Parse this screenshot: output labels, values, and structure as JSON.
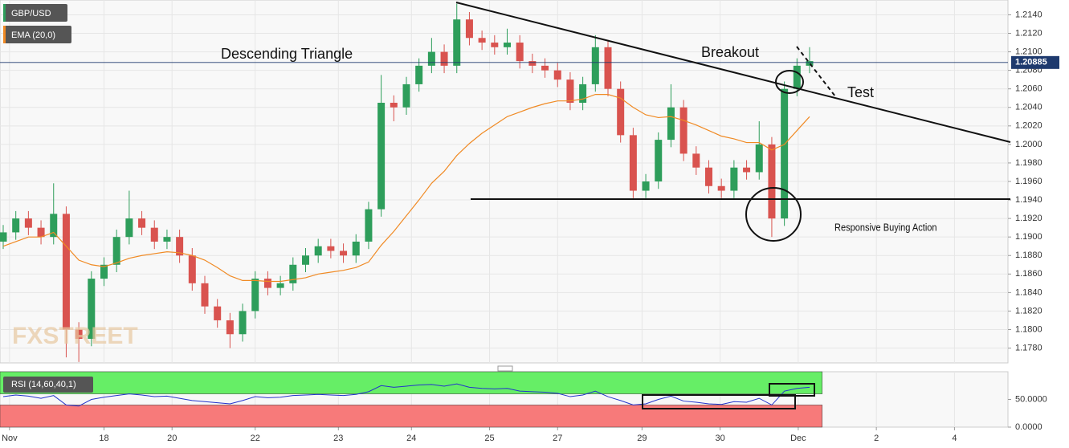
{
  "chart_data": [
    {
      "type": "candlestick",
      "symbol": "GBP/USD",
      "annotations": [
        "Descending Triangle",
        "Breakout",
        "Test",
        "Responsive  Buying Action"
      ],
      "watermark": "FXSTREET",
      "up_color": "#2e9e5b",
      "down_color": "#d9534f",
      "open": [
        1.1895,
        1.1905,
        1.192,
        1.191,
        1.19,
        1.1925,
        1.18,
        1.179,
        1.1855,
        1.187,
        1.19,
        1.192,
        1.191,
        1.1895,
        1.19,
        1.188,
        1.185,
        1.1825,
        1.181,
        1.1795,
        1.182,
        1.1855,
        1.1845,
        1.185,
        1.187,
        1.188,
        1.189,
        1.1885,
        1.188,
        1.1895,
        1.193,
        1.2045,
        1.204,
        1.2065,
        1.2085,
        1.21,
        1.2085,
        1.2135,
        1.2115,
        1.211,
        1.2105,
        1.211,
        1.209,
        1.2085,
        1.208,
        1.207,
        1.2045,
        1.2065,
        1.2105,
        1.206,
        1.201,
        1.195,
        1.196,
        1.2005,
        1.204,
        1.199,
        1.1975,
        1.1955,
        1.195,
        1.1975,
        1.197,
        1.2,
        1.192,
        1.206,
        1.2085
      ],
      "high": [
        1.1913,
        1.1928,
        1.1928,
        1.1918,
        1.1958,
        1.1933,
        1.1808,
        1.1863,
        1.1878,
        1.1908,
        1.195,
        1.1928,
        1.1918,
        1.1908,
        1.1908,
        1.1888,
        1.1858,
        1.1833,
        1.1818,
        1.1828,
        1.1863,
        1.1863,
        1.1858,
        1.1878,
        1.1888,
        1.1898,
        1.1898,
        1.1893,
        1.1903,
        1.1938,
        1.2075,
        1.2053,
        1.2073,
        1.2093,
        1.2115,
        1.2108,
        1.2152,
        1.2143,
        1.2123,
        1.2118,
        1.2125,
        1.2118,
        1.2098,
        1.2093,
        1.2088,
        1.2078,
        1.2073,
        1.2118,
        1.2113,
        1.2068,
        1.2018,
        1.1968,
        1.2013,
        1.2065,
        1.2048,
        1.1998,
        1.1983,
        1.1963,
        1.1983,
        1.1983,
        1.2025,
        1.2008,
        1.2068,
        1.2093,
        1.2105
      ],
      "low": [
        1.1887,
        1.1897,
        1.1902,
        1.1892,
        1.1892,
        1.177,
        1.1765,
        1.1782,
        1.1847,
        1.1862,
        1.1892,
        1.1902,
        1.1887,
        1.1887,
        1.1872,
        1.1842,
        1.1817,
        1.1802,
        1.178,
        1.1787,
        1.1812,
        1.1837,
        1.1837,
        1.1842,
        1.1862,
        1.1872,
        1.1877,
        1.1872,
        1.1872,
        1.1887,
        1.1922,
        1.2025,
        1.2032,
        1.2057,
        1.2077,
        1.2077,
        1.2077,
        1.2107,
        1.2102,
        1.2097,
        1.2097,
        1.2082,
        1.2077,
        1.2072,
        1.2062,
        1.2037,
        1.2037,
        1.2057,
        1.2052,
        1.2002,
        1.1942,
        1.1942,
        1.1952,
        1.1997,
        1.1982,
        1.1967,
        1.1947,
        1.1942,
        1.1942,
        1.1962,
        1.1962,
        1.19,
        1.1912,
        1.2052,
        1.2077
      ],
      "close": [
        1.1905,
        1.192,
        1.191,
        1.19,
        1.1925,
        1.18,
        1.179,
        1.1855,
        1.187,
        1.19,
        1.192,
        1.191,
        1.1895,
        1.19,
        1.188,
        1.185,
        1.1825,
        1.181,
        1.1795,
        1.182,
        1.1855,
        1.1845,
        1.185,
        1.187,
        1.188,
        1.189,
        1.1885,
        1.188,
        1.1895,
        1.193,
        1.2045,
        1.204,
        1.2065,
        1.2085,
        1.21,
        1.2085,
        1.2135,
        1.2115,
        1.211,
        1.2105,
        1.211,
        1.209,
        1.2085,
        1.208,
        1.207,
        1.2045,
        1.2065,
        1.2105,
        1.206,
        1.201,
        1.195,
        1.196,
        1.2005,
        1.204,
        1.199,
        1.1975,
        1.1955,
        1.195,
        1.1975,
        1.197,
        1.2,
        1.192,
        1.206,
        1.2085,
        1.209
      ],
      "ema": {
        "name": "EMA (20,0)",
        "color": "#f08a24",
        "values": [
          1.189,
          1.1895,
          1.19,
          1.19,
          1.1905,
          1.189,
          1.1875,
          1.187,
          1.1868,
          1.1872,
          1.1877,
          1.188,
          1.1882,
          1.1884,
          1.1883,
          1.188,
          1.1875,
          1.1867,
          1.1858,
          1.1853,
          1.1853,
          1.1852,
          1.1852,
          1.1854,
          1.1856,
          1.186,
          1.1862,
          1.1864,
          1.1867,
          1.1873,
          1.1891,
          1.1906,
          1.1923,
          1.194,
          1.1958,
          1.1971,
          1.1988,
          1.2001,
          1.2012,
          1.2021,
          1.203,
          1.2035,
          1.204,
          1.2044,
          1.2047,
          1.2047,
          1.2049,
          1.2054,
          1.2054,
          1.205,
          1.204,
          1.2032,
          1.2029,
          1.203,
          1.2026,
          1.2021,
          1.2015,
          1.2009,
          1.2006,
          1.2002,
          1.2002,
          1.1994,
          1.2,
          1.2015,
          1.203
        ]
      },
      "last": 1.20885,
      "ylim": [
        1.1764,
        1.2156
      ],
      "yticks": [
        {
          "value": 1.214,
          "label": "1.2140"
        },
        {
          "value": 1.212,
          "label": "1.2120"
        },
        {
          "value": 1.21,
          "label": "1.2100"
        },
        {
          "value": 1.208,
          "label": "1.2080"
        },
        {
          "value": 1.206,
          "label": "1.2060"
        },
        {
          "value": 1.204,
          "label": "1.2040"
        },
        {
          "value": 1.202,
          "label": "1.2020"
        },
        {
          "value": 1.2,
          "label": "1.2000"
        },
        {
          "value": 1.198,
          "label": "1.1980"
        },
        {
          "value": 1.196,
          "label": "1.1960"
        },
        {
          "value": 1.194,
          "label": "1.1940"
        },
        {
          "value": 1.192,
          "label": "1.1920"
        },
        {
          "value": 1.19,
          "label": "1.1900"
        },
        {
          "value": 1.188,
          "label": "1.1880"
        },
        {
          "value": 1.186,
          "label": "1.1860"
        },
        {
          "value": 1.184,
          "label": "1.1840"
        },
        {
          "value": 1.182,
          "label": "1.1820"
        },
        {
          "value": 1.18,
          "label": "1.1800"
        },
        {
          "value": 1.178,
          "label": "1.1780"
        }
      ],
      "xlim": [
        0,
        80
      ],
      "xticks": [
        {
          "value": 0.5,
          "label": "Nov"
        },
        {
          "value": 8,
          "label": "18"
        },
        {
          "value": 13.4,
          "label": "20"
        },
        {
          "value": 20,
          "label": "22"
        },
        {
          "value": 26.6,
          "label": "23"
        },
        {
          "value": 32.4,
          "label": "24"
        },
        {
          "value": 38.6,
          "label": "25"
        },
        {
          "value": 44,
          "label": "27"
        },
        {
          "value": 50.7,
          "label": "29"
        },
        {
          "value": 56.9,
          "label": "30"
        },
        {
          "value": 63.1,
          "label": "Dec"
        },
        {
          "value": 69.3,
          "label": "2"
        },
        {
          "value": 75.5,
          "label": "4"
        }
      ],
      "grid": true
    },
    {
      "type": "line",
      "name": "RSI (14,60,40,1)",
      "color": "#2233cc",
      "values": [
        55,
        58,
        56,
        52,
        57,
        40,
        38,
        50,
        54,
        57,
        60,
        58,
        55,
        56,
        52,
        48,
        46,
        44,
        42,
        48,
        55,
        53,
        54,
        57,
        58,
        59,
        58,
        57,
        59,
        64,
        75,
        72,
        74,
        76,
        77,
        74,
        78,
        72,
        70,
        69,
        70,
        65,
        64,
        63,
        61,
        55,
        58,
        65,
        55,
        48,
        40,
        42,
        50,
        56,
        47,
        45,
        42,
        41,
        46,
        45,
        52,
        40,
        65,
        70,
        72
      ],
      "bands": [
        {
          "from": 60,
          "to": 100,
          "color": "#66ee66"
        },
        {
          "from": 0,
          "to": 40,
          "color": "#f77a7a"
        }
      ],
      "ylim": [
        0,
        100
      ],
      "yticks": [
        {
          "value": 50,
          "label": "50.0000"
        },
        {
          "value": 0,
          "label": "0.0000"
        }
      ],
      "grid": true
    }
  ]
}
